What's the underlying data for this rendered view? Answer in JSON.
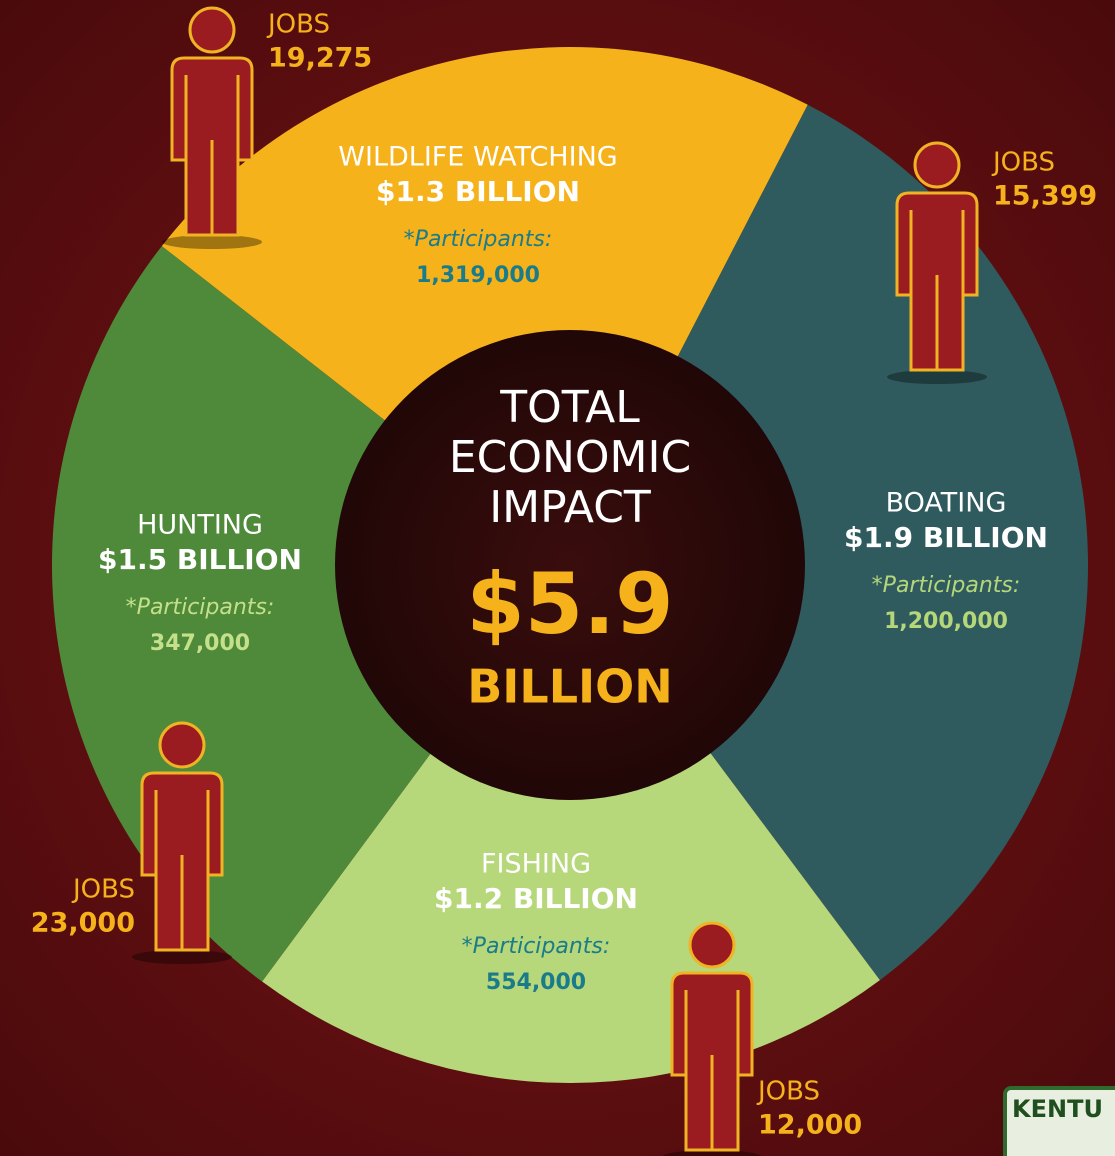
{
  "chart_data": {
    "type": "donut",
    "categories": [
      "WILDLIFE WATCHING",
      "BOATING",
      "FISHING",
      "HUNTING"
    ],
    "values": [
      1.3,
      1.9,
      1.2,
      1.5
    ],
    "value_labels": [
      "$1.3 BILLION",
      "$1.9 BILLION",
      "$1.2 BILLION",
      "$1.5 BILLION"
    ],
    "colors": [
      "#f5b21b",
      "#2f5b5f",
      "#b6d77a",
      "#4e8a3a"
    ],
    "participants_label": "*Participants:",
    "participants": [
      "1,319,000",
      "1,200,000",
      "554,000",
      "347,000"
    ],
    "jobs_label": "JOBS",
    "jobs": [
      "19,275",
      "15,399",
      "12,000",
      "23,000"
    ],
    "center_title": [
      "TOTAL",
      "ECONOMIC",
      "IMPACT"
    ],
    "total_label": "$5.9",
    "total_unit": "BILLION",
    "logo_text": "KENTU"
  }
}
